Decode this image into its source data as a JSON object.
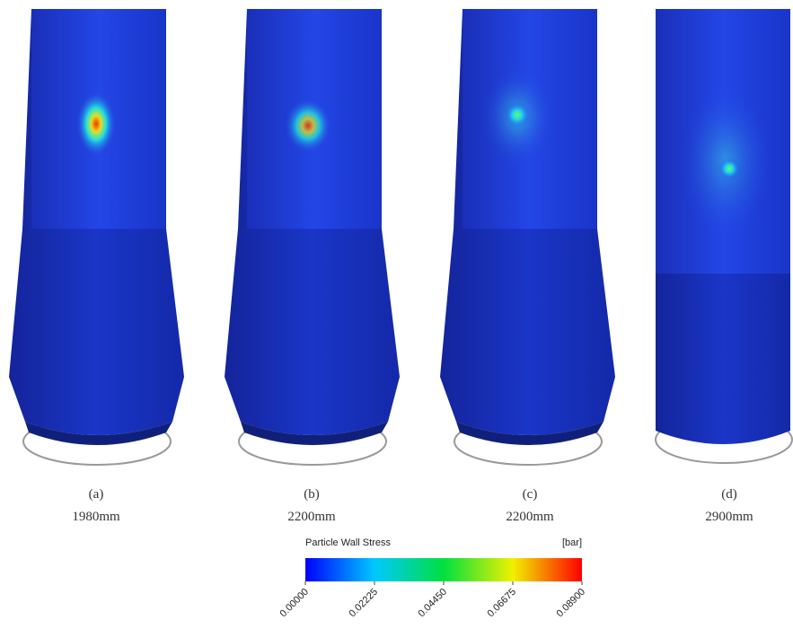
{
  "panels": [
    {
      "letter": "(a)",
      "caption": "1980mm"
    },
    {
      "letter": "(b)",
      "caption": "2200mm"
    },
    {
      "letter": "(c)",
      "caption": "2200mm"
    },
    {
      "letter": "(d)",
      "caption": "2900mm"
    }
  ],
  "colorbar": {
    "title": "Particle Wall Stress",
    "unit": "[bar]",
    "ticks": [
      {
        "value": 0,
        "label": "0.00000"
      },
      {
        "value": 0.02225,
        "label": "0.02225"
      },
      {
        "value": 0.0445,
        "label": "0.04450"
      },
      {
        "value": 0.06675,
        "label": "0.06675"
      },
      {
        "value": 0.089,
        "label": "0.08900"
      }
    ]
  }
}
